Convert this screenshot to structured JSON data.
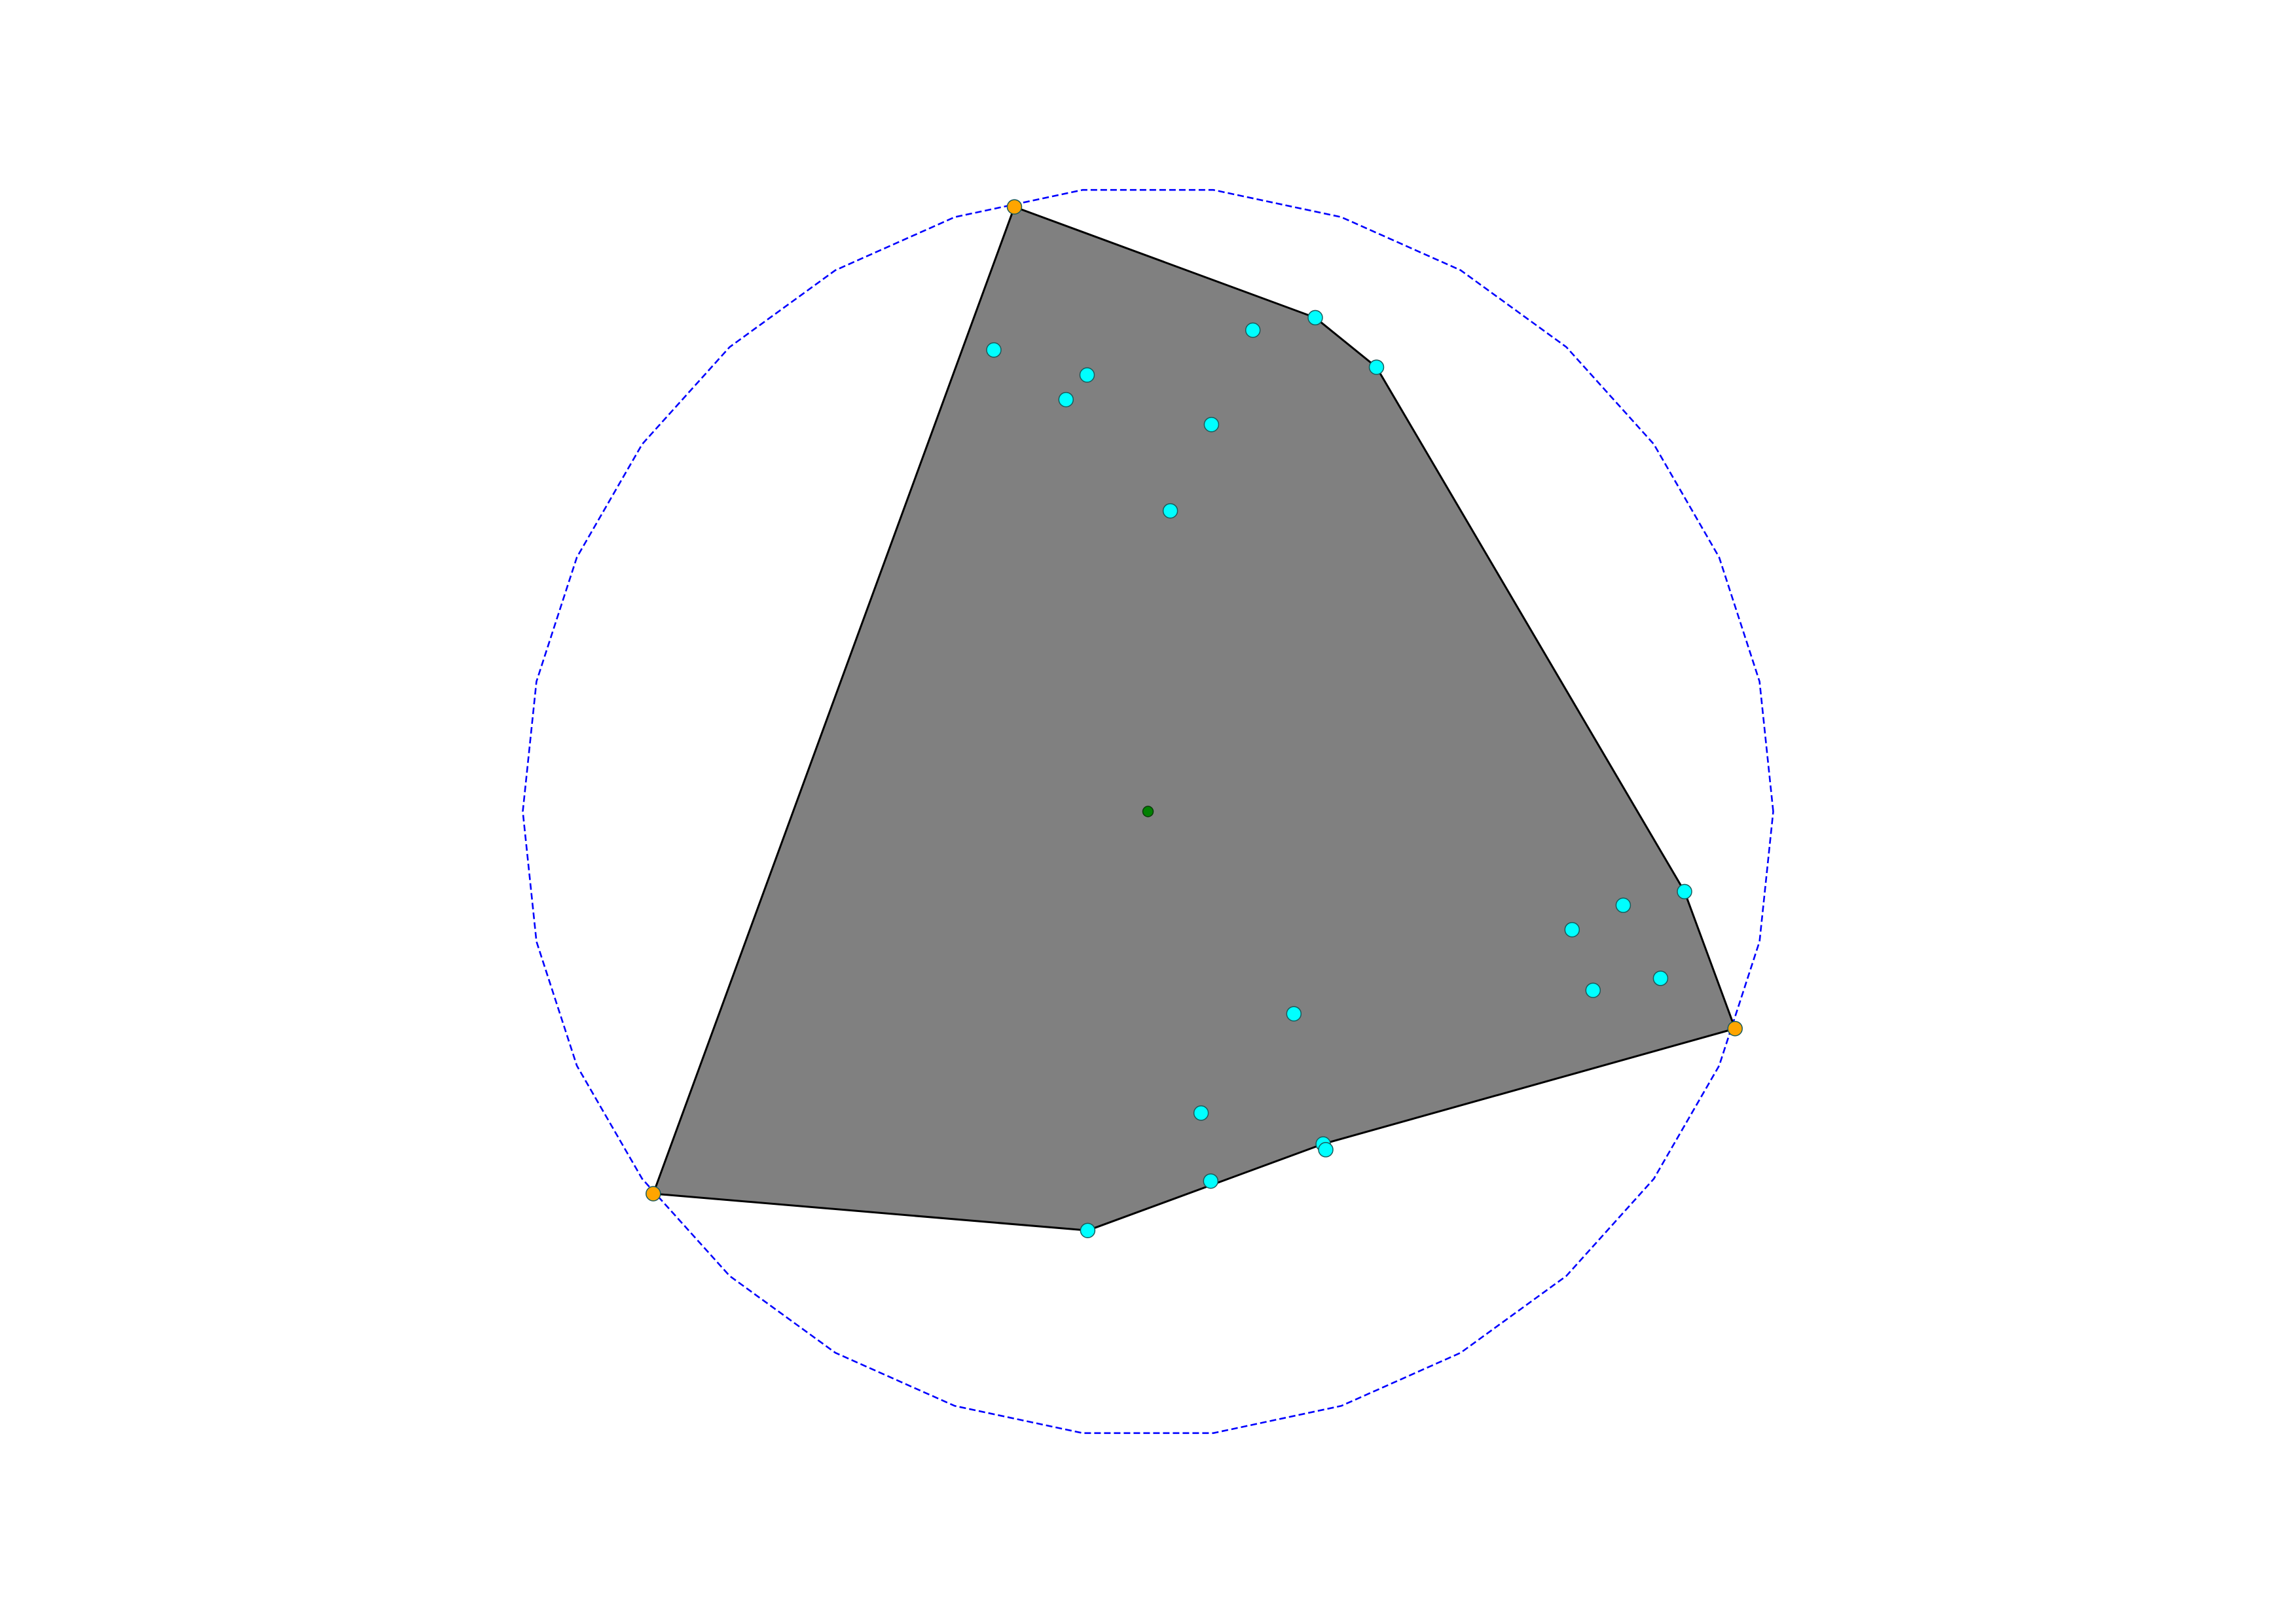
{
  "colors": {
    "background": "#ffffff",
    "hull_fill": "#808080",
    "hull_stroke": "#000000",
    "circle_stroke": "#0000ff",
    "inner_point": "#00ffff",
    "circle_point": "#ffa500",
    "center_point": "#008000"
  },
  "points": [
    {
      "kind": "circle",
      "x": -0.2136,
      "y": 0.9674
    },
    {
      "kind": "hull",
      "x": 0.2675,
      "y": 0.7902
    },
    {
      "kind": "hull",
      "x": 0.3654,
      "y": 0.7109
    },
    {
      "kind": "hull",
      "x": 0.8581,
      "y": -0.1282
    },
    {
      "kind": "circle",
      "x": 0.939,
      "y": -0.3473
    },
    {
      "kind": "hull",
      "x": 0.2802,
      "y": -0.5319
    },
    {
      "kind": "inner",
      "x": 0.1003,
      "y": -0.5913
    },
    {
      "kind": "hull",
      "x": -0.0964,
      "y": -0.6704
    },
    {
      "kind": "circle",
      "x": -0.7913,
      "y": -0.6115
    },
    {
      "kind": "inner",
      "x": -0.2466,
      "y": 0.7384
    },
    {
      "kind": "inner",
      "x": -0.0974,
      "y": 0.6984
    },
    {
      "kind": "inner",
      "x": -0.1311,
      "y": 0.6591
    },
    {
      "kind": "inner",
      "x": 0.1678,
      "y": 0.7702
    },
    {
      "kind": "inner",
      "x": 0.1015,
      "y": 0.6192
    },
    {
      "kind": "inner",
      "x": 0.0357,
      "y": 0.481
    },
    {
      "kind": "inner",
      "x": 0.7601,
      "y": -0.1501
    },
    {
      "kind": "inner",
      "x": 0.6783,
      "y": -0.1891
    },
    {
      "kind": "inner",
      "x": 0.8198,
      "y": -0.2669
    },
    {
      "kind": "inner",
      "x": 0.7118,
      "y": -0.2861
    },
    {
      "kind": "inner",
      "x": 0.2333,
      "y": -0.3237
    },
    {
      "kind": "inner",
      "x": 0.0849,
      "y": -0.4825
    },
    {
      "kind": "inner",
      "x": 0.2843,
      "y": -0.5412
    }
  ],
  "hull": [
    0,
    1,
    2,
    3,
    4,
    5,
    7,
    8
  ],
  "circle": {
    "cx": 0,
    "cy": 0,
    "r": 1
  },
  "center": {
    "x": 0,
    "y": 0
  }
}
